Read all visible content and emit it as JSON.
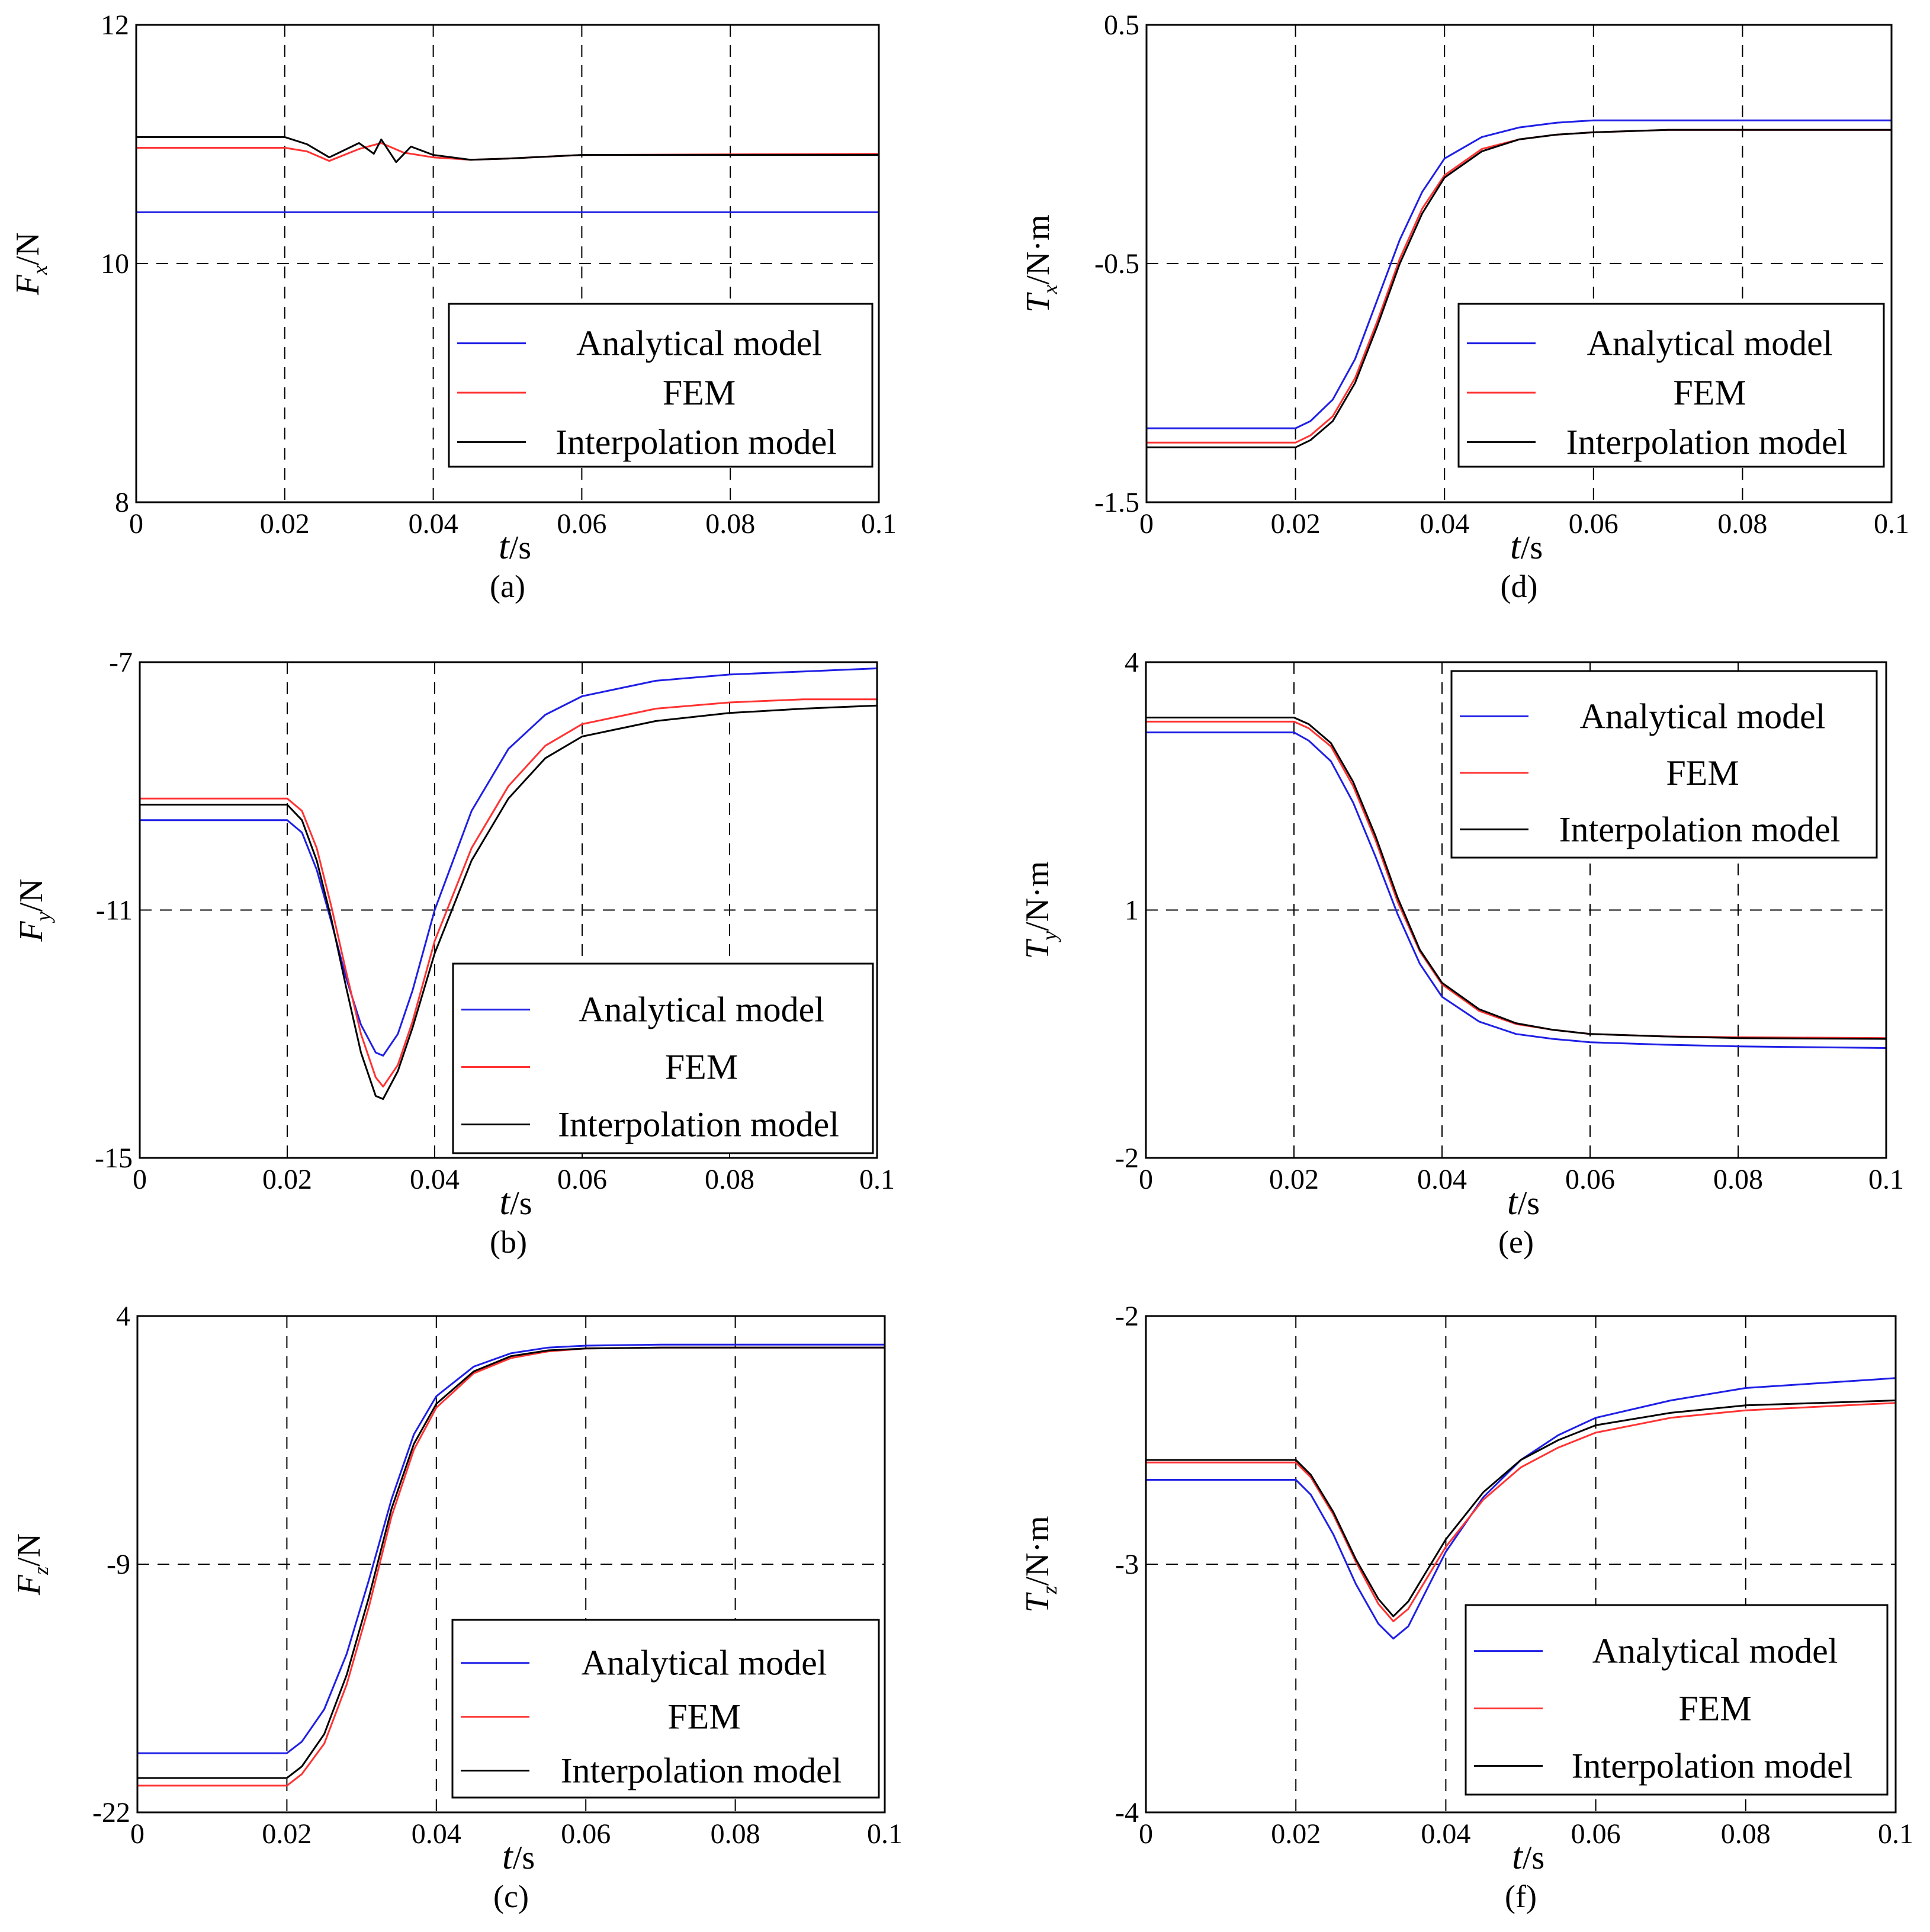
{
  "colors": {
    "analytical": "#1f1fe6",
    "fem": "#ff3333",
    "interp": "#000000",
    "grid": "#000000"
  },
  "legend_labels": [
    "Analytical model",
    "FEM",
    "Interpolation model"
  ],
  "chart_data": [
    {
      "id": "a",
      "type": "line",
      "panel_label": "(a)",
      "ylabel": "F",
      "ylabel_sub": "x",
      "ylabel_unit": "/N",
      "xlabel": "t",
      "xlabel_unit": "/s",
      "xlim": [
        0,
        0.1
      ],
      "ylim": [
        8,
        12
      ],
      "xticks": [
        0,
        0.02,
        0.04,
        0.06,
        0.08,
        0.1
      ],
      "xticklabels": [
        "0",
        "0.02",
        "0.04",
        "0.06",
        "0.08",
        "0.1"
      ],
      "yticks": [
        8,
        10,
        12
      ],
      "yticklabels": [
        "8",
        "10",
        "12"
      ],
      "legend": {
        "labels": [
          "Analytical model",
          "FEM",
          "Interpolation model"
        ],
        "position": "bottom-right"
      },
      "series": [
        {
          "name": "Analytical model",
          "color": "#1f1fe6",
          "x": [
            0,
            0.1
          ],
          "y": [
            10.43,
            10.43
          ]
        },
        {
          "name": "FEM",
          "color": "#ff3333",
          "x": [
            0,
            0.02,
            0.023,
            0.026,
            0.03,
            0.033,
            0.036,
            0.04,
            0.045,
            0.05,
            0.06,
            0.1
          ],
          "y": [
            10.97,
            10.97,
            10.94,
            10.86,
            10.96,
            11.01,
            10.93,
            10.89,
            10.87,
            10.88,
            10.91,
            10.92
          ]
        },
        {
          "name": "Interpolation model",
          "color": "#000000",
          "x": [
            0,
            0.02,
            0.023,
            0.026,
            0.028,
            0.03,
            0.032,
            0.033,
            0.035,
            0.037,
            0.04,
            0.045,
            0.05,
            0.06,
            0.1
          ],
          "y": [
            11.06,
            11.06,
            11.0,
            10.89,
            10.95,
            11.01,
            10.92,
            11.04,
            10.85,
            10.98,
            10.91,
            10.87,
            10.88,
            10.91,
            10.91
          ]
        }
      ]
    },
    {
      "id": "b",
      "type": "line",
      "panel_label": "(b)",
      "ylabel": "F",
      "ylabel_sub": "y",
      "ylabel_unit": "/N",
      "xlabel": "t",
      "xlabel_unit": "/s",
      "xlim": [
        0,
        0.1
      ],
      "ylim": [
        -15,
        -7
      ],
      "xticks": [
        0,
        0.02,
        0.04,
        0.06,
        0.08,
        0.1
      ],
      "xticklabels": [
        "0",
        "0.02",
        "0.04",
        "0.06",
        "0.08",
        "0.1"
      ],
      "yticks": [
        -15,
        -11,
        -7
      ],
      "yticklabels": [
        "-15",
        "-11",
        "-7"
      ],
      "legend": {
        "labels": [
          "Analytical model",
          "FEM",
          "Interpolation model"
        ],
        "position": "bottom-right"
      },
      "series": [
        {
          "name": "Analytical model",
          "color": "#1f1fe6",
          "x": [
            0,
            0.02,
            0.022,
            0.024,
            0.026,
            0.028,
            0.03,
            0.032,
            0.033,
            0.035,
            0.037,
            0.04,
            0.045,
            0.05,
            0.055,
            0.06,
            0.07,
            0.08,
            0.09,
            0.1
          ],
          "y": [
            -9.55,
            -9.55,
            -9.75,
            -10.35,
            -11.2,
            -12.1,
            -12.85,
            -13.3,
            -13.35,
            -13.0,
            -12.3,
            -11.0,
            -9.4,
            -8.4,
            -7.85,
            -7.55,
            -7.3,
            -7.2,
            -7.15,
            -7.1
          ]
        },
        {
          "name": "FEM",
          "color": "#ff3333",
          "x": [
            0,
            0.02,
            0.022,
            0.024,
            0.026,
            0.028,
            0.03,
            0.032,
            0.033,
            0.035,
            0.037,
            0.04,
            0.045,
            0.05,
            0.055,
            0.06,
            0.07,
            0.08,
            0.09,
            0.1
          ],
          "y": [
            -9.2,
            -9.2,
            -9.4,
            -10.0,
            -10.95,
            -12.0,
            -13.0,
            -13.7,
            -13.85,
            -13.5,
            -12.8,
            -11.5,
            -10.0,
            -9.0,
            -8.35,
            -8.0,
            -7.75,
            -7.65,
            -7.6,
            -7.6
          ]
        },
        {
          "name": "Interpolation model",
          "color": "#000000",
          "x": [
            0,
            0.02,
            0.022,
            0.024,
            0.026,
            0.028,
            0.03,
            0.032,
            0.033,
            0.035,
            0.037,
            0.04,
            0.045,
            0.05,
            0.055,
            0.06,
            0.07,
            0.08,
            0.09,
            0.1
          ],
          "y": [
            -9.3,
            -9.3,
            -9.55,
            -10.2,
            -11.15,
            -12.25,
            -13.3,
            -14.0,
            -14.05,
            -13.6,
            -12.9,
            -11.7,
            -10.2,
            -9.2,
            -8.55,
            -8.2,
            -7.95,
            -7.82,
            -7.75,
            -7.7
          ]
        }
      ]
    },
    {
      "id": "c",
      "type": "line",
      "panel_label": "(c)",
      "ylabel": "F",
      "ylabel_sub": "z",
      "ylabel_unit": "/N",
      "xlabel": "t",
      "xlabel_unit": "/s",
      "xlim": [
        0,
        0.1
      ],
      "ylim": [
        -22,
        4
      ],
      "xticks": [
        0,
        0.02,
        0.04,
        0.06,
        0.08,
        0.1
      ],
      "xticklabels": [
        "0",
        "0.02",
        "0.04",
        "0.06",
        "0.08",
        "0.1"
      ],
      "yticks": [
        -22,
        -9,
        4
      ],
      "yticklabels": [
        "-22",
        "-9",
        "4"
      ],
      "legend": {
        "labels": [
          "Analytical model",
          "FEM",
          "Interpolation model"
        ],
        "position": "bottom-right"
      },
      "series": [
        {
          "name": "Analytical model",
          "color": "#1f1fe6",
          "x": [
            0,
            0.02,
            0.022,
            0.025,
            0.028,
            0.031,
            0.034,
            0.037,
            0.04,
            0.045,
            0.05,
            0.055,
            0.06,
            0.07,
            0.08,
            0.1
          ],
          "y": [
            -18.9,
            -18.9,
            -18.3,
            -16.6,
            -13.7,
            -9.8,
            -5.6,
            -2.2,
            -0.2,
            1.35,
            2.05,
            2.35,
            2.45,
            2.5,
            2.5,
            2.5
          ]
        },
        {
          "name": "FEM",
          "color": "#ff3333",
          "x": [
            0,
            0.02,
            0.022,
            0.025,
            0.028,
            0.031,
            0.034,
            0.037,
            0.04,
            0.045,
            0.05,
            0.055,
            0.06,
            0.07,
            0.08,
            0.1
          ],
          "y": [
            -20.6,
            -20.6,
            -20.0,
            -18.4,
            -15.3,
            -11.2,
            -6.5,
            -3.0,
            -0.8,
            1.0,
            1.8,
            2.15,
            2.3,
            2.35,
            2.35,
            2.35
          ]
        },
        {
          "name": "Interpolation model",
          "color": "#000000",
          "x": [
            0,
            0.02,
            0.022,
            0.025,
            0.028,
            0.031,
            0.034,
            0.037,
            0.04,
            0.045,
            0.05,
            0.055,
            0.06,
            0.07,
            0.08,
            0.1
          ],
          "y": [
            -20.2,
            -20.2,
            -19.6,
            -17.9,
            -14.8,
            -10.7,
            -6.1,
            -2.7,
            -0.6,
            1.1,
            1.9,
            2.2,
            2.3,
            2.35,
            2.35,
            2.35
          ]
        }
      ]
    },
    {
      "id": "d",
      "type": "line",
      "panel_label": "(d)",
      "ylabel": "T",
      "ylabel_sub": "x",
      "ylabel_unit": "/N·m",
      "xlabel": "t",
      "xlabel_unit": "/s",
      "xlim": [
        0,
        0.1
      ],
      "ylim": [
        -1.5,
        0.5
      ],
      "xticks": [
        0,
        0.02,
        0.04,
        0.06,
        0.08,
        0.1
      ],
      "xticklabels": [
        "0",
        "0.02",
        "0.04",
        "0.06",
        "0.08",
        "0.1"
      ],
      "yticks": [
        -1.5,
        -0.5,
        0.5
      ],
      "yticklabels": [
        "-1.5",
        "-0.5",
        "0.5"
      ],
      "legend": {
        "labels": [
          "Analytical model",
          "FEM",
          "Interpolation model"
        ],
        "position": "bottom-right"
      },
      "series": [
        {
          "name": "Analytical model",
          "color": "#1f1fe6",
          "x": [
            0,
            0.02,
            0.022,
            0.025,
            0.028,
            0.031,
            0.034,
            0.037,
            0.04,
            0.045,
            0.05,
            0.055,
            0.06,
            0.07,
            0.08,
            0.1
          ],
          "y": [
            -1.19,
            -1.19,
            -1.16,
            -1.07,
            -0.9,
            -0.65,
            -0.4,
            -0.2,
            -0.06,
            0.03,
            0.07,
            0.09,
            0.1,
            0.1,
            0.1,
            0.1
          ]
        },
        {
          "name": "FEM",
          "color": "#ff3333",
          "x": [
            0,
            0.02,
            0.022,
            0.025,
            0.028,
            0.031,
            0.034,
            0.037,
            0.04,
            0.045,
            0.05,
            0.055,
            0.06,
            0.07,
            0.08,
            0.1
          ],
          "y": [
            -1.25,
            -1.25,
            -1.22,
            -1.14,
            -0.98,
            -0.74,
            -0.48,
            -0.27,
            -0.13,
            -0.02,
            0.02,
            0.04,
            0.05,
            0.06,
            0.06,
            0.06
          ]
        },
        {
          "name": "Interpolation model",
          "color": "#000000",
          "x": [
            0,
            0.02,
            0.022,
            0.025,
            0.028,
            0.031,
            0.034,
            0.037,
            0.04,
            0.045,
            0.05,
            0.055,
            0.06,
            0.07,
            0.08,
            0.1
          ],
          "y": [
            -1.27,
            -1.27,
            -1.24,
            -1.16,
            -1.0,
            -0.76,
            -0.5,
            -0.29,
            -0.14,
            -0.03,
            0.02,
            0.04,
            0.05,
            0.06,
            0.06,
            0.06
          ]
        }
      ]
    },
    {
      "id": "e",
      "type": "line",
      "panel_label": "(e)",
      "ylabel": "T",
      "ylabel_sub": "y",
      "ylabel_unit": "/N·m",
      "xlabel": "t",
      "xlabel_unit": "/s",
      "xlim": [
        0,
        0.1
      ],
      "ylim": [
        -2,
        4
      ],
      "xticks": [
        0,
        0.02,
        0.04,
        0.06,
        0.08,
        0.1
      ],
      "xticklabels": [
        "0",
        "0.02",
        "0.04",
        "0.06",
        "0.08",
        "0.1"
      ],
      "yticks": [
        -2,
        1,
        4
      ],
      "yticklabels": [
        "-2",
        "1",
        "4"
      ],
      "legend": {
        "labels": [
          "Analytical model",
          "FEM",
          "Interpolation model"
        ],
        "position": "top-right"
      },
      "series": [
        {
          "name": "Analytical model",
          "color": "#1f1fe6",
          "x": [
            0,
            0.02,
            0.022,
            0.025,
            0.028,
            0.031,
            0.034,
            0.037,
            0.04,
            0.045,
            0.05,
            0.055,
            0.06,
            0.07,
            0.08,
            0.1
          ],
          "y": [
            3.15,
            3.15,
            3.05,
            2.8,
            2.3,
            1.65,
            0.95,
            0.35,
            -0.05,
            -0.35,
            -0.5,
            -0.56,
            -0.6,
            -0.63,
            -0.65,
            -0.67
          ]
        },
        {
          "name": "FEM",
          "color": "#ff3333",
          "x": [
            0,
            0.02,
            0.022,
            0.025,
            0.028,
            0.031,
            0.034,
            0.037,
            0.04,
            0.045,
            0.05,
            0.055,
            0.06,
            0.07,
            0.08,
            0.1
          ],
          "y": [
            3.28,
            3.28,
            3.2,
            2.98,
            2.5,
            1.85,
            1.1,
            0.5,
            0.1,
            -0.22,
            -0.38,
            -0.45,
            -0.5,
            -0.53,
            -0.54,
            -0.55
          ]
        },
        {
          "name": "Interpolation model",
          "color": "#000000",
          "x": [
            0,
            0.02,
            0.022,
            0.025,
            0.028,
            0.031,
            0.034,
            0.037,
            0.04,
            0.045,
            0.05,
            0.055,
            0.06,
            0.07,
            0.08,
            0.1
          ],
          "y": [
            3.33,
            3.33,
            3.25,
            3.02,
            2.55,
            1.9,
            1.15,
            0.52,
            0.12,
            -0.2,
            -0.37,
            -0.45,
            -0.5,
            -0.53,
            -0.55,
            -0.56
          ]
        }
      ]
    },
    {
      "id": "f",
      "type": "line",
      "panel_label": "(f)",
      "ylabel": "T",
      "ylabel_sub": "z",
      "ylabel_unit": "/N·m",
      "xlabel": "t",
      "xlabel_unit": "/s",
      "xlim": [
        0,
        0.1
      ],
      "ylim": [
        -4,
        -2
      ],
      "xticks": [
        0,
        0.02,
        0.04,
        0.06,
        0.08,
        0.1
      ],
      "xticklabels": [
        "0",
        "0.02",
        "0.04",
        "0.06",
        "0.08",
        "0.1"
      ],
      "yticks": [
        -4,
        -3,
        -2
      ],
      "yticklabels": [
        "-4",
        "-3",
        "-2"
      ],
      "legend": {
        "labels": [
          "Analytical model",
          "FEM",
          "Interpolation model"
        ],
        "position": "bottom-right"
      },
      "series": [
        {
          "name": "Analytical model",
          "color": "#1f1fe6",
          "x": [
            0,
            0.02,
            0.022,
            0.025,
            0.028,
            0.031,
            0.033,
            0.035,
            0.037,
            0.04,
            0.045,
            0.05,
            0.055,
            0.06,
            0.07,
            0.08,
            0.1
          ],
          "y": [
            -2.66,
            -2.66,
            -2.72,
            -2.88,
            -3.08,
            -3.24,
            -3.3,
            -3.25,
            -3.13,
            -2.95,
            -2.73,
            -2.58,
            -2.48,
            -2.41,
            -2.34,
            -2.29,
            -2.25
          ]
        },
        {
          "name": "FEM",
          "color": "#ff3333",
          "x": [
            0,
            0.02,
            0.022,
            0.025,
            0.028,
            0.031,
            0.033,
            0.035,
            0.037,
            0.04,
            0.045,
            0.05,
            0.055,
            0.06,
            0.07,
            0.08,
            0.1
          ],
          "y": [
            -2.59,
            -2.59,
            -2.65,
            -2.8,
            -2.99,
            -3.16,
            -3.23,
            -3.18,
            -3.08,
            -2.93,
            -2.74,
            -2.61,
            -2.53,
            -2.47,
            -2.41,
            -2.38,
            -2.35
          ]
        },
        {
          "name": "Interpolation model",
          "color": "#000000",
          "x": [
            0,
            0.02,
            0.022,
            0.025,
            0.028,
            0.031,
            0.033,
            0.035,
            0.037,
            0.04,
            0.045,
            0.05,
            0.055,
            0.06,
            0.07,
            0.08,
            0.1
          ],
          "y": [
            -2.58,
            -2.58,
            -2.64,
            -2.79,
            -2.98,
            -3.14,
            -3.21,
            -3.15,
            -3.05,
            -2.9,
            -2.71,
            -2.58,
            -2.5,
            -2.44,
            -2.39,
            -2.36,
            -2.34
          ]
        }
      ]
    }
  ]
}
